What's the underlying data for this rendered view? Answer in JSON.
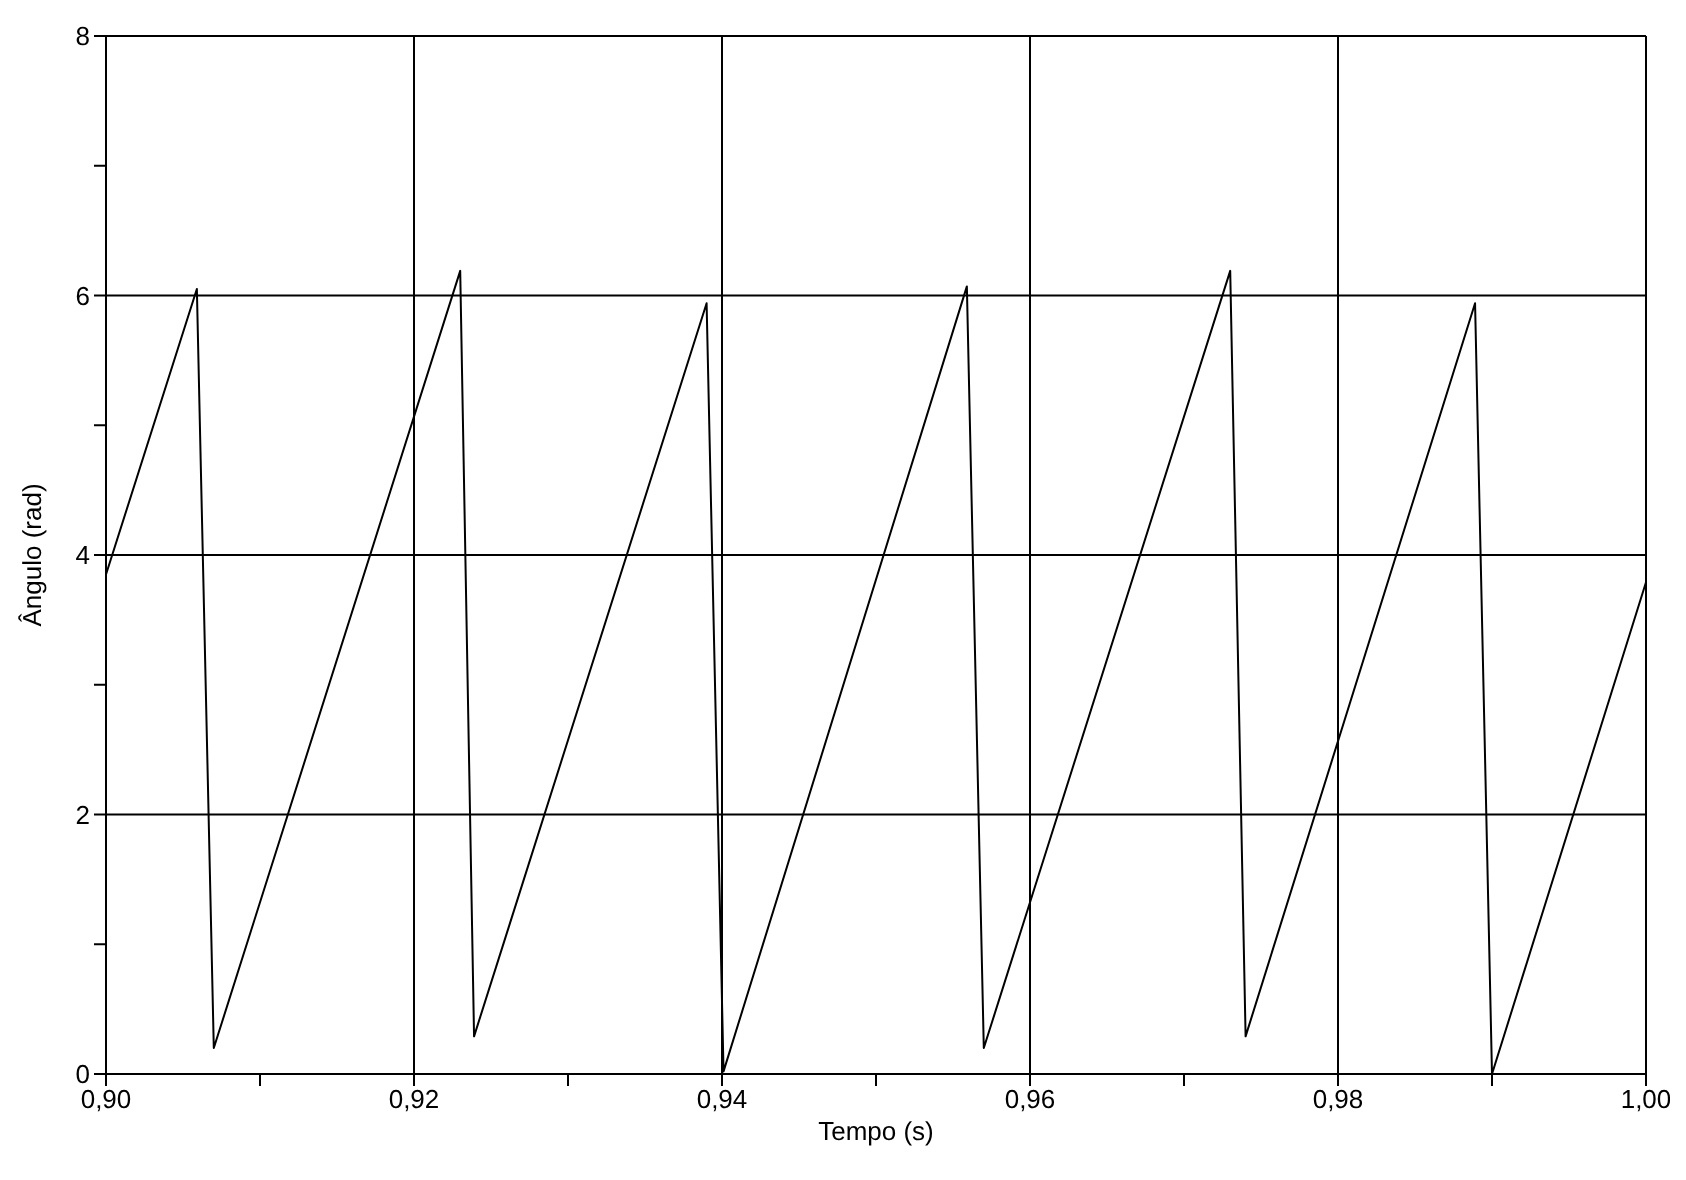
{
  "chart_data": {
    "type": "line",
    "xlabel": "Tempo (s)",
    "ylabel": "Ângulo (rad)",
    "xlim": [
      0.9,
      1.0
    ],
    "xticks": [
      {
        "value": 0.9,
        "label": "0,90"
      },
      {
        "value": 0.91,
        "label": null
      },
      {
        "value": 0.92,
        "label": "0,92"
      },
      {
        "value": 0.93,
        "label": null
      },
      {
        "value": 0.94,
        "label": "0,94"
      },
      {
        "value": 0.95,
        "label": null
      },
      {
        "value": 0.96,
        "label": "0,96"
      },
      {
        "value": 0.97,
        "label": null
      },
      {
        "value": 0.98,
        "label": "0,98"
      },
      {
        "value": 0.99,
        "label": null
      },
      {
        "value": 1.0,
        "label": "1,00"
      }
    ],
    "ylim": [
      0,
      8
    ],
    "yticks": [
      0,
      {
        "value": 1,
        "label": null
      },
      2,
      {
        "value": 3,
        "label": null
      },
      4,
      {
        "value": 5,
        "label": null
      },
      6,
      {
        "value": 7,
        "label": null
      },
      8
    ],
    "grid": true,
    "marker": "none",
    "line_style": "solid",
    "series": [
      {
        "color": "#000000",
        "x": [
          0.9,
          0.9059,
          0.907,
          0.923,
          0.9239,
          0.939,
          0.9401,
          0.9559,
          0.957,
          0.973,
          0.974,
          0.9889,
          0.99,
          1.0
        ],
        "values": [
          3.85,
          6.05,
          0.2,
          6.19,
          0.29,
          5.94,
          0.02,
          6.07,
          0.2,
          6.19,
          0.29,
          5.94,
          0.0,
          3.79
        ]
      }
    ]
  }
}
